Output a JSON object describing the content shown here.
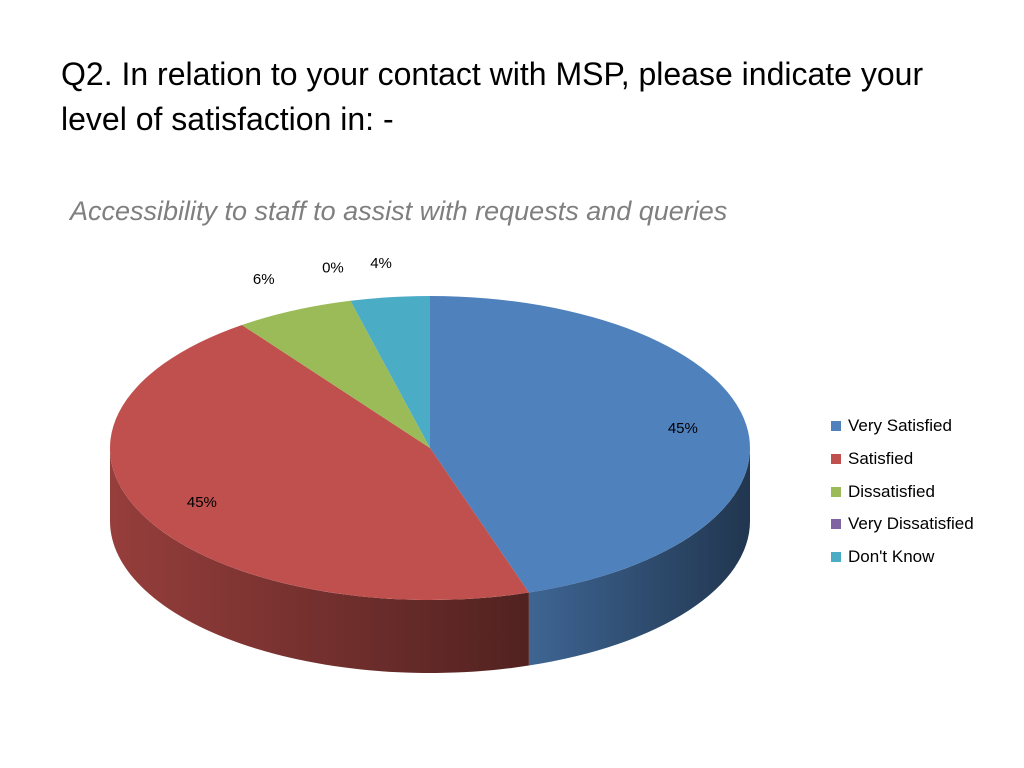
{
  "slide": {
    "title": "Q2. In relation to your contact with MSP, please indicate your level of satisfaction in: -"
  },
  "chart_data": {
    "type": "pie",
    "title": "Accessibility to staff to assist with requests and queries",
    "categories": [
      "Very Satisfied",
      "Satisfied",
      "Dissatisfied",
      "Very Dissatisfied",
      "Don't Know"
    ],
    "values": [
      45,
      45,
      6,
      0,
      4
    ],
    "labels": [
      "45%",
      "45%",
      "6%",
      "0%",
      "4%"
    ],
    "colors": [
      "#4F81BD",
      "#C0504D",
      "#9BBB59",
      "#8064A2",
      "#4BACC6"
    ],
    "legend_position": "right",
    "style": "3d"
  }
}
